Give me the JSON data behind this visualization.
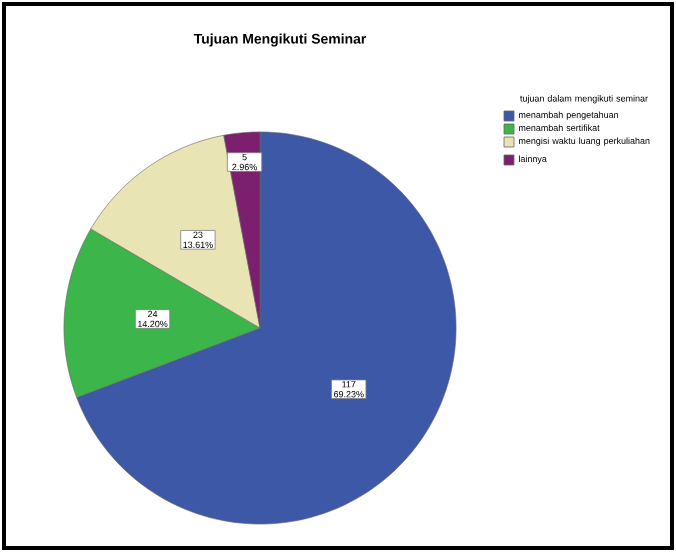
{
  "chart_data": {
    "type": "pie",
    "title": "Tujuan Mengikuti Seminar",
    "legend_title": "tujuan dalam mengikuti seminar",
    "legend": "top right",
    "categories": [
      "menambah pengetahuan",
      "menambah sertifikat",
      "mengisi waktu luang perkuliahan",
      "lainnya"
    ],
    "values": [
      117,
      24,
      23,
      5
    ],
    "value_labels": [
      "117\n69.23%",
      "24\n14.20%",
      "23\n13.61%",
      "5\n2.96%"
    ],
    "colors": [
      "#3e58a8",
      "#3cb54a",
      "#e8e4b4",
      "#7b1f6e"
    ]
  }
}
